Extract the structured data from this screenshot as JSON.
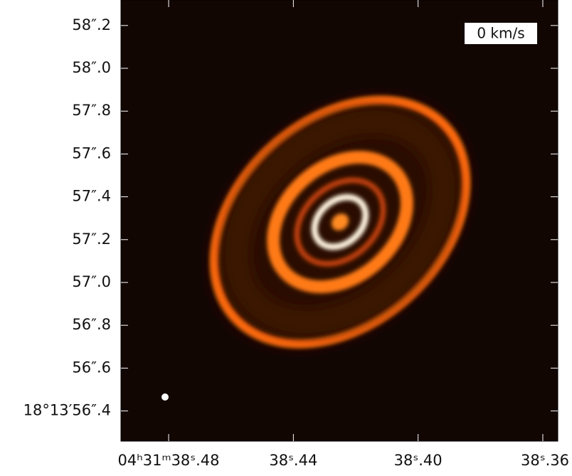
{
  "chart_data": {
    "type": "image",
    "annotation": "0 km/s",
    "xlim": [
      38.4953,
      38.3552
    ],
    "ylim": [
      56.259,
      58.319
    ],
    "xticks": [
      {
        "value": 38.48,
        "label": "04ʰ31ᵐ38ˢ.48"
      },
      {
        "value": 38.44,
        "label": "38ˢ.44"
      },
      {
        "value": 38.4,
        "label": "38ˢ.40"
      },
      {
        "value": 38.36,
        "label": "38ˢ.36"
      }
    ],
    "yticks": [
      {
        "value": 58.2,
        "label": "58″.2"
      },
      {
        "value": 58.0,
        "label": "58″.0"
      },
      {
        "value": 57.8,
        "label": "57″.8"
      },
      {
        "value": 57.6,
        "label": "57″.6"
      },
      {
        "value": 57.4,
        "label": "57″.4"
      },
      {
        "value": 57.2,
        "label": "57″.2"
      },
      {
        "value": 57.0,
        "label": "57″.0"
      },
      {
        "value": 56.8,
        "label": "56″.8"
      },
      {
        "value": 56.6,
        "label": "56″.6"
      },
      {
        "value": 56.4,
        "label": "18°13′56″.4"
      }
    ]
  }
}
